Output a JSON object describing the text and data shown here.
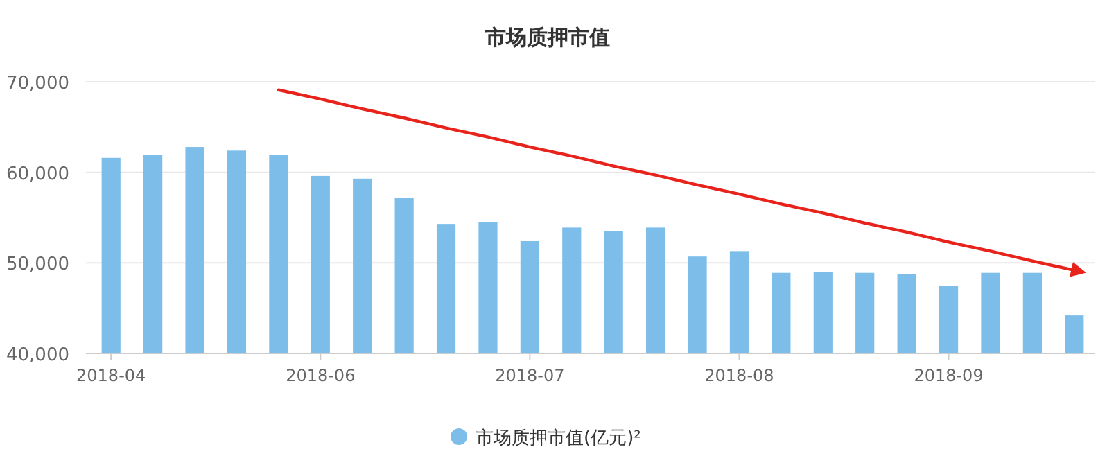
{
  "chart_data": {
    "type": "bar",
    "title": "市场质押市值",
    "categories": [
      "2018-04",
      null,
      null,
      null,
      null,
      "2018-06",
      null,
      null,
      null,
      null,
      "2018-07",
      null,
      null,
      null,
      null,
      "2018-08",
      null,
      null,
      null,
      null,
      "2018-09",
      null,
      null,
      null
    ],
    "series": [
      {
        "name": "市场质押市值(亿元)²",
        "color": "#7dbde9",
        "values": [
          61600,
          61900,
          62800,
          62400,
          61900,
          59600,
          59300,
          57200,
          54300,
          54500,
          52400,
          53900,
          53500,
          53900,
          50700,
          51300,
          48900,
          49000,
          48900,
          48800,
          47500,
          48900,
          48900,
          44200
        ]
      },
      {
        "type": "line",
        "color": "#e8231b",
        "values": [
          null,
          null,
          null,
          null,
          69100,
          68100,
          67000,
          66000,
          64900,
          63900,
          62800,
          61800,
          60700,
          59700,
          58600,
          57600,
          56500,
          55500,
          54400,
          53400,
          52300,
          51300,
          50200,
          49200
        ]
      }
    ],
    "ylim": [
      40000,
      70000
    ],
    "yticks": [
      {
        "value": 40000,
        "label": "40,000"
      },
      {
        "value": 50000,
        "label": "50,000"
      },
      {
        "value": 60000,
        "label": "60,000"
      },
      {
        "value": 70000,
        "label": "70,000"
      }
    ],
    "grid": "y",
    "legend": "bottom"
  }
}
